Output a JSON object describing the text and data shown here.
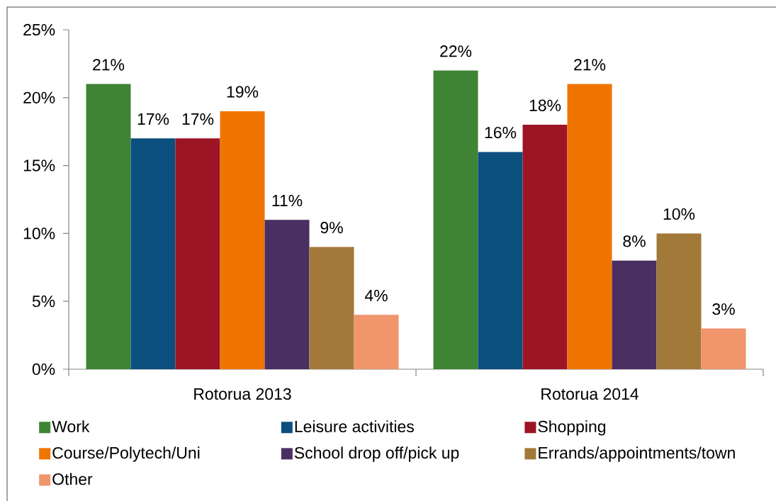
{
  "chart_data": {
    "type": "bar",
    "categories": [
      "Rotorua 2013",
      "Rotorua 2014"
    ],
    "series": [
      {
        "name": "Work",
        "color": "#3f8434",
        "values": [
          21,
          22
        ],
        "value_labels": [
          "21%",
          "22%"
        ]
      },
      {
        "name": "Leisure activities",
        "color": "#0b4f7e",
        "values": [
          17,
          16
        ],
        "value_labels": [
          "17%",
          "16%"
        ]
      },
      {
        "name": "Shopping",
        "color": "#9c1525",
        "values": [
          17,
          18
        ],
        "value_labels": [
          "17%",
          "18%"
        ]
      },
      {
        "name": "Course/Polytech/Uni",
        "color": "#f07400",
        "values": [
          19,
          21
        ],
        "value_labels": [
          "19%",
          "21%"
        ]
      },
      {
        "name": "School drop off/pick up",
        "color": "#4a2f62",
        "values": [
          11,
          8
        ],
        "value_labels": [
          "11%",
          "8%"
        ]
      },
      {
        "name": "Errands/appointments/town",
        "color": "#a27939",
        "values": [
          9,
          10
        ],
        "value_labels": [
          "9%",
          "10%"
        ]
      },
      {
        "name": "Other",
        "color": "#f0956c",
        "values": [
          4,
          3
        ],
        "value_labels": [
          "4%",
          "3%"
        ]
      }
    ],
    "ylim": [
      0,
      25
    ],
    "yticks": [
      {
        "value": 0,
        "label": "0%"
      },
      {
        "value": 5,
        "label": "5%"
      },
      {
        "value": 10,
        "label": "10%"
      },
      {
        "value": 15,
        "label": "15%"
      },
      {
        "value": 20,
        "label": "20%"
      },
      {
        "value": 25,
        "label": "25%"
      }
    ],
    "legend": "bottom"
  }
}
